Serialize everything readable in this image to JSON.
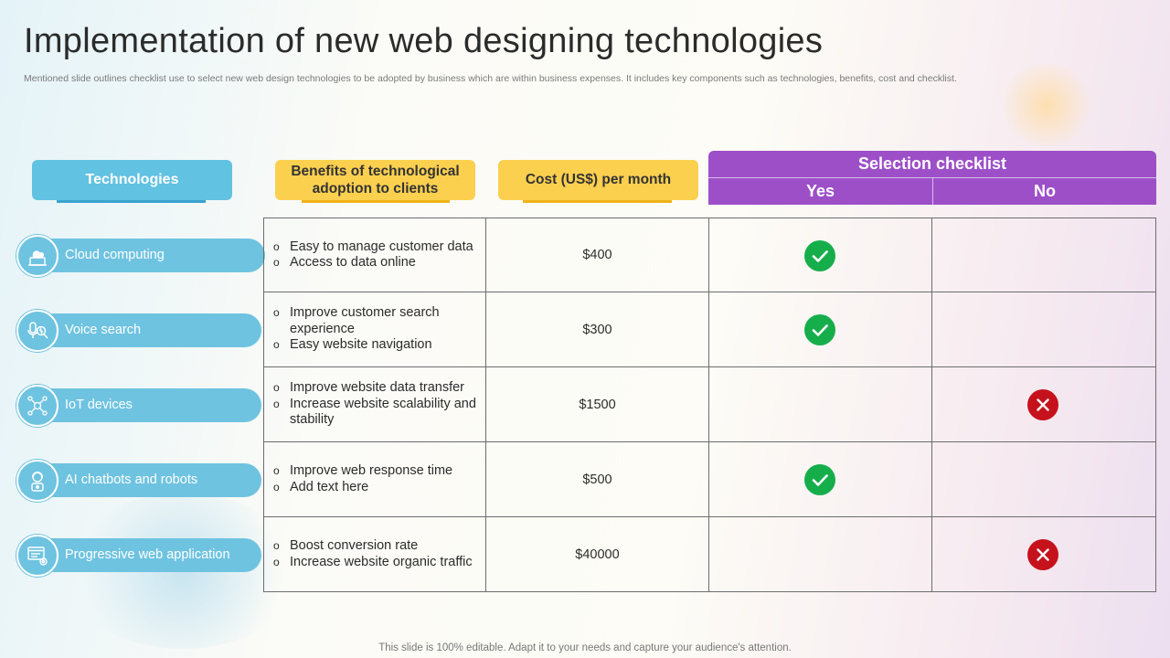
{
  "title": "Implementation of new web designing technologies",
  "subtitle": "Mentioned slide outlines checklist use to select new web design technologies to be adopted by business which are within business expenses. It includes key components such as technologies, benefits, cost and checklist.",
  "footer": "This slide is 100% editable. Adapt it to your needs and capture your audience's attention.",
  "headers": {
    "technologies": "Technologies",
    "benefits": "Benefits of technological adoption to clients",
    "cost": "Cost (US$) per month",
    "selection": "Selection checklist",
    "yes": "Yes",
    "no": "No"
  },
  "colors": {
    "technologies": "#62c2e2",
    "benefits_cost": "#fcd04f",
    "selection": "#9d4fc8",
    "yes_mark": "#16ae4b",
    "no_mark": "#c6121c"
  },
  "rows": [
    {
      "technology": "Cloud computing",
      "icon": "cloud-computer-icon",
      "benefits": [
        "Easy to manage customer data",
        "Access to data online"
      ],
      "cost": "$400",
      "selection": "yes"
    },
    {
      "technology": "Voice search",
      "icon": "voice-search-icon",
      "benefits": [
        "Improve customer search experience",
        "Easy website navigation"
      ],
      "cost": "$300",
      "selection": "yes"
    },
    {
      "technology": "IoT devices",
      "icon": "iot-network-icon",
      "benefits": [
        "Improve website data transfer",
        "Increase website scalability and stability"
      ],
      "cost": "$1500",
      "selection": "no"
    },
    {
      "technology": "AI chatbots and robots",
      "icon": "chatbot-icon",
      "benefits": [
        "Improve web response time",
        "Add text here"
      ],
      "cost": "$500",
      "selection": "yes"
    },
    {
      "technology": "Progressive web application",
      "icon": "web-app-settings-icon",
      "benefits": [
        "Boost conversion rate",
        "Increase website organic traffic"
      ],
      "cost": "$40000",
      "selection": "no"
    }
  ]
}
